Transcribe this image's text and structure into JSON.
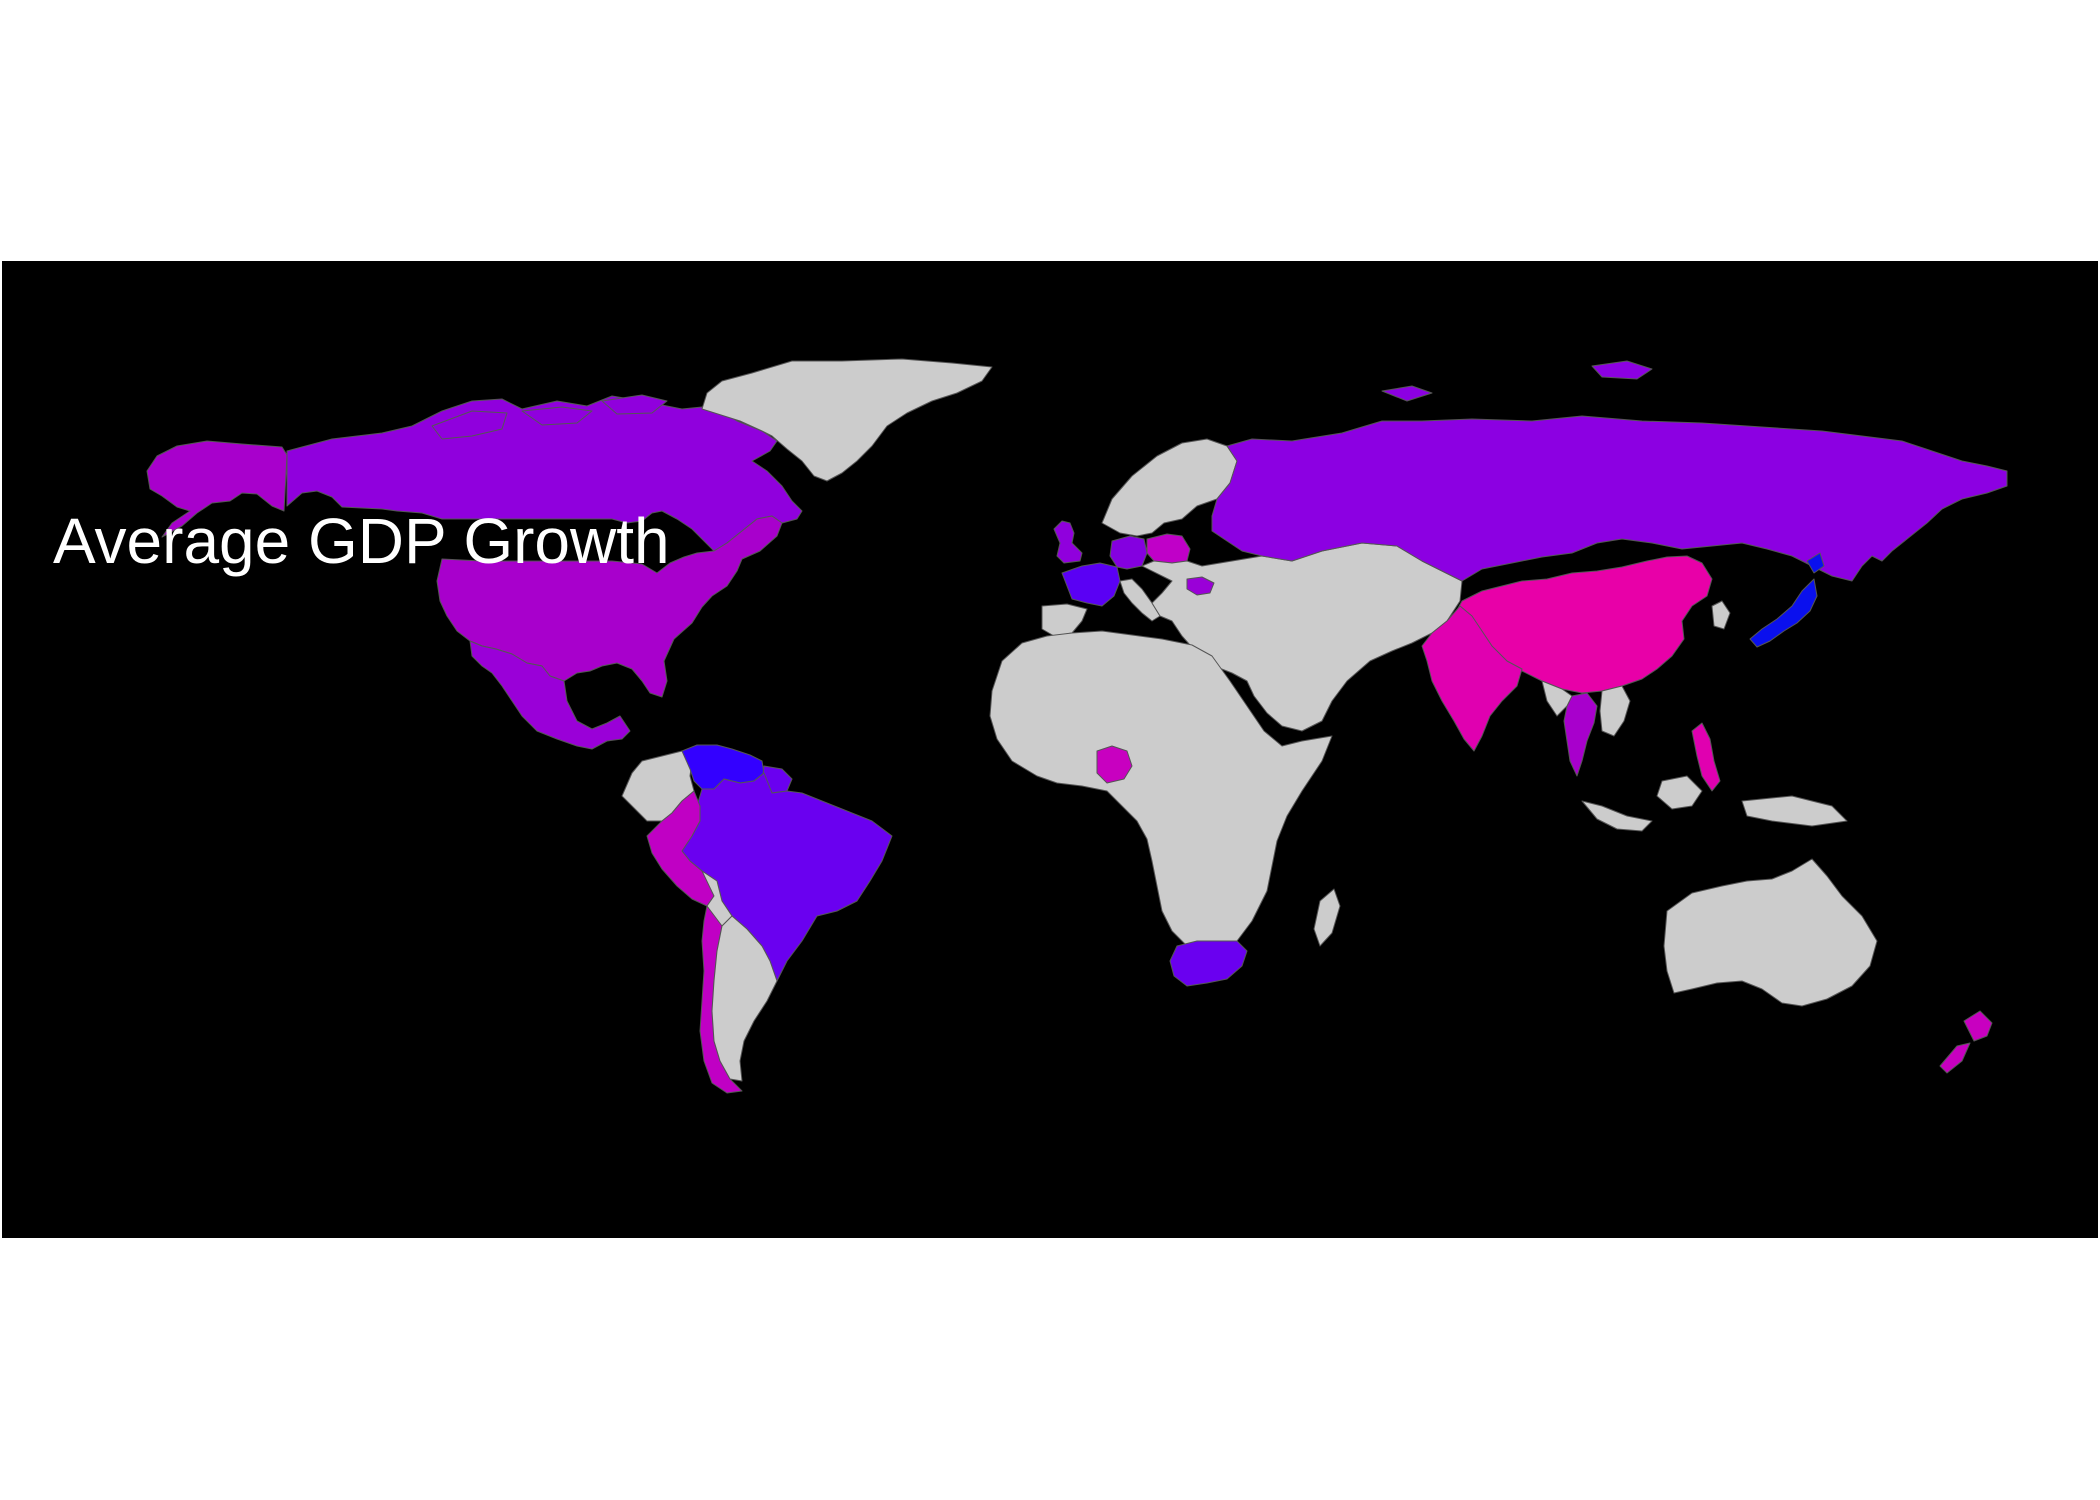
{
  "title": "Average GDP Growth",
  "colors": {
    "panel_background": "#000000",
    "no_data": "#cccccc",
    "border": "#555555"
  },
  "countries": [
    {
      "name": "Canada",
      "fill": "#9000dd"
    },
    {
      "name": "Alaska (United States)",
      "fill": "#a800cc"
    },
    {
      "name": "United States",
      "fill": "#a800cc"
    },
    {
      "name": "Mexico",
      "fill": "#9a00d8"
    },
    {
      "name": "Greenland",
      "fill": "#cccccc"
    },
    {
      "name": "Venezuela",
      "fill": "#3300ff"
    },
    {
      "name": "Guyana",
      "fill": "#6a00f0"
    },
    {
      "name": "Colombia",
      "fill": "#cccccc"
    },
    {
      "name": "Brazil",
      "fill": "#6a00f0"
    },
    {
      "name": "Peru",
      "fill": "#c000c4"
    },
    {
      "name": "Chile",
      "fill": "#c000c4"
    },
    {
      "name": "Argentina",
      "fill": "#cccccc"
    },
    {
      "name": "Bolivia",
      "fill": "#cccccc"
    },
    {
      "name": "United Kingdom",
      "fill": "#9000dd"
    },
    {
      "name": "France",
      "fill": "#5a00f4"
    },
    {
      "name": "Spain",
      "fill": "#cccccc"
    },
    {
      "name": "Germany",
      "fill": "#8400e0"
    },
    {
      "name": "Poland",
      "fill": "#c000c8"
    },
    {
      "name": "Scandinavia",
      "fill": "#cccccc"
    },
    {
      "name": "Italy",
      "fill": "#cccccc"
    },
    {
      "name": "Romania",
      "fill": "#9a00d8"
    },
    {
      "name": "Russia",
      "fill": "#8c00e2"
    },
    {
      "name": "Middle East and Central Asia",
      "fill": "#cccccc"
    },
    {
      "name": "China",
      "fill": "#e800a8"
    },
    {
      "name": "India",
      "fill": "#e000b0"
    },
    {
      "name": "Thailand",
      "fill": "#a800cc"
    },
    {
      "name": "Southeast Asia",
      "fill": "#cccccc"
    },
    {
      "name": "Philippines",
      "fill": "#e000b0"
    },
    {
      "name": "Japan",
      "fill": "#0a10ee"
    },
    {
      "name": "Korea",
      "fill": "#cccccc"
    },
    {
      "name": "Indonesia",
      "fill": "#cccccc"
    },
    {
      "name": "Africa",
      "fill": "#cccccc"
    },
    {
      "name": "Nigeria",
      "fill": "#c800c0"
    },
    {
      "name": "South Africa",
      "fill": "#6a00f0"
    },
    {
      "name": "Madagascar",
      "fill": "#cccccc"
    },
    {
      "name": "Australia",
      "fill": "#cccccc"
    },
    {
      "name": "New Zealand",
      "fill": "#c800c0"
    }
  ]
}
